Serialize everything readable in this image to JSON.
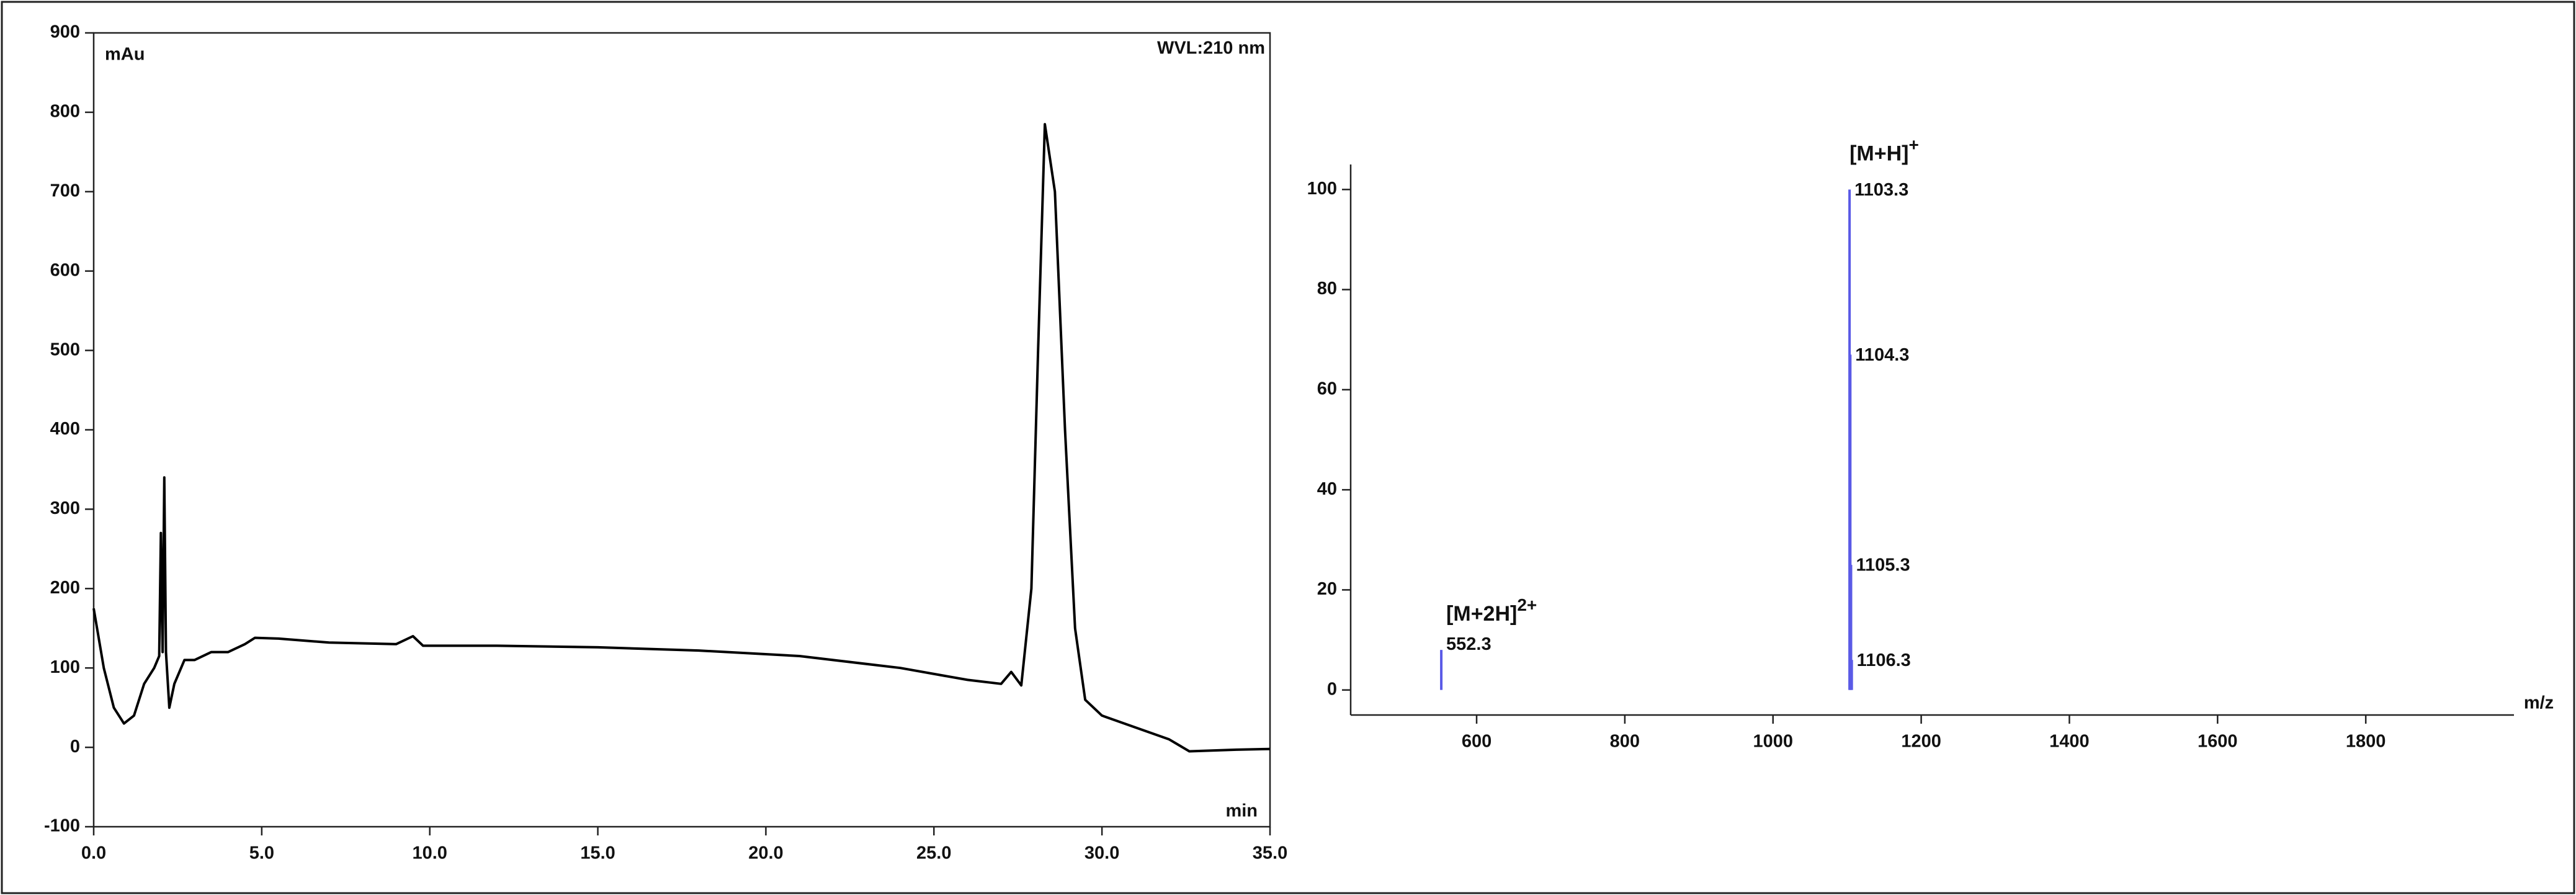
{
  "chart_data": [
    {
      "type": "line",
      "y_unit": "mAu",
      "x_unit": "min",
      "subtitle": "WVL:210 nm",
      "color": "#000000",
      "x": [
        0,
        0.3,
        0.6,
        0.9,
        1.2,
        1.5,
        1.8,
        1.95,
        2.0,
        2.05,
        2.1,
        2.15,
        2.25,
        2.4,
        2.7,
        3.0,
        3.5,
        4.0,
        4.5,
        4.8,
        5.5,
        7,
        9,
        9.5,
        9.8,
        12,
        15,
        18,
        21,
        24,
        26,
        27,
        27.3,
        27.6,
        27.9,
        28.1,
        28.3,
        28.6,
        28.9,
        29.2,
        29.5,
        30,
        31,
        32,
        32.6,
        34,
        35
      ],
      "values": [
        175,
        100,
        50,
        30,
        40,
        80,
        100,
        115,
        270,
        120,
        340,
        120,
        50,
        80,
        110,
        110,
        120,
        120,
        130,
        138,
        137,
        132,
        130,
        140,
        128,
        128,
        126,
        122,
        115,
        100,
        85,
        80,
        95,
        78,
        200,
        500,
        785,
        700,
        400,
        150,
        60,
        40,
        25,
        10,
        -5,
        -3,
        -2
      ],
      "xlim": [
        0,
        35
      ],
      "xticks": [
        {
          "value": 0,
          "label": "0.0"
        },
        {
          "value": 5,
          "label": "5.0"
        },
        {
          "value": 10,
          "label": "10.0"
        },
        {
          "value": 15,
          "label": "15.0"
        },
        {
          "value": 20,
          "label": "20.0"
        },
        {
          "value": 25,
          "label": "25.0"
        },
        {
          "value": 30,
          "label": "30.0"
        },
        {
          "value": 35,
          "label": "35.0"
        }
      ],
      "ylim": [
        -100,
        900
      ],
      "yticks": [
        -100,
        0,
        100,
        200,
        300,
        400,
        500,
        600,
        700,
        800,
        900
      ]
    },
    {
      "type": "stem",
      "x_unit": "m/z",
      "color": "#5a5ae6",
      "x": [
        552.3,
        1103.3,
        1104.3,
        1105.3,
        1106.3
      ],
      "values": [
        8,
        100,
        67,
        25,
        6
      ],
      "annotations": [
        {
          "text": "[M+2H]",
          "sup": "2+"
        },
        {
          "text": "[M+H]",
          "sup": "+"
        }
      ],
      "xlim": [
        430,
        2000
      ],
      "xticks": [
        600,
        800,
        1000,
        1200,
        1400,
        1600,
        1800
      ],
      "ylim": [
        -5,
        105
      ],
      "yticks": [
        0,
        20,
        40,
        60,
        80,
        100
      ]
    }
  ]
}
